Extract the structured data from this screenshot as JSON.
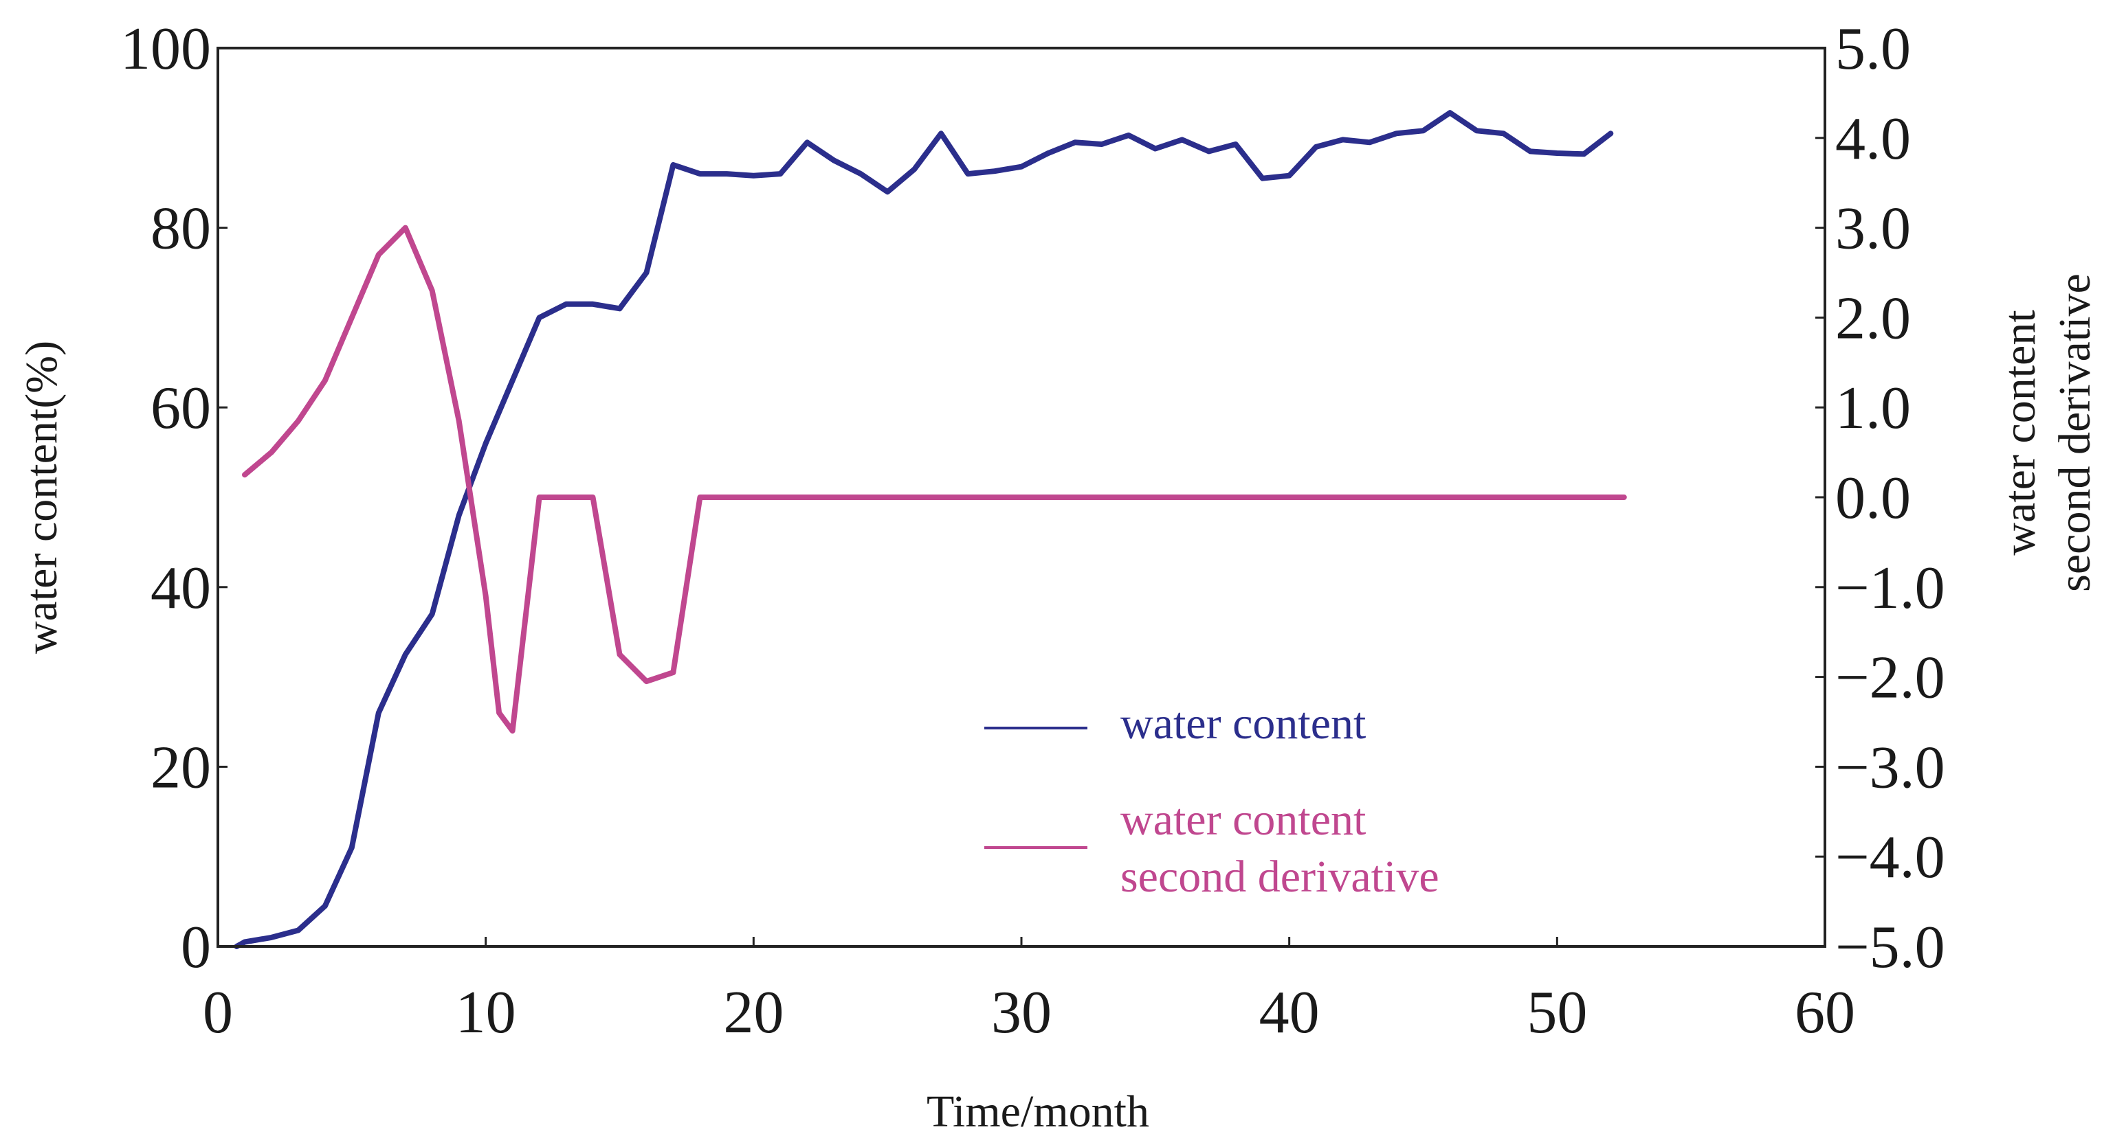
{
  "chart_data": {
    "type": "line",
    "title": "",
    "xlabel": "Time/month",
    "ylabel": "water content(%)",
    "y2label_line1": "water content",
    "y2label_line2": "second derivative",
    "xlim": [
      0,
      60
    ],
    "ylim": [
      0,
      100
    ],
    "y2lim": [
      -5,
      5
    ],
    "grid": false,
    "legend_position": "lower-right",
    "x_ticks": [
      0,
      10,
      20,
      30,
      40,
      50,
      60
    ],
    "x_tick_labels": [
      "0",
      "10",
      "20",
      "30",
      "40",
      "50",
      "60"
    ],
    "y_ticks": [
      0,
      20,
      40,
      60,
      80,
      100
    ],
    "y_tick_labels": [
      "0",
      "20",
      "40",
      "60",
      "80",
      "100"
    ],
    "y2_ticks": [
      -5,
      -4,
      -3,
      -2,
      -1,
      0,
      1,
      2,
      3,
      4,
      5
    ],
    "y2_tick_labels": [
      "−5.0",
      "−4.0",
      "−3.0",
      "−2.0",
      "−1.0",
      "0.0",
      "1.0",
      "2.0",
      "3.0",
      "4.0",
      "5.0"
    ],
    "series": [
      {
        "name": "water content",
        "legend_label": "water content",
        "axis": "left",
        "color": "#2b2e8c",
        "x": [
          0.7,
          1,
          2,
          3,
          4,
          5,
          6,
          7,
          8,
          9,
          10,
          11,
          12,
          13,
          14,
          15,
          16,
          17,
          18,
          19,
          20,
          21,
          22,
          23,
          24,
          25,
          26,
          27,
          28,
          29,
          30,
          31,
          32,
          33,
          34,
          35,
          36,
          37,
          38,
          39,
          40,
          41,
          42,
          43,
          44,
          45,
          46,
          47,
          48,
          49,
          50,
          51,
          52
        ],
        "y": [
          0,
          0.5,
          1,
          1.8,
          4.5,
          11,
          26,
          32.5,
          37,
          48,
          56,
          63,
          70,
          71.5,
          71.5,
          71,
          75,
          87,
          86,
          86,
          85.8,
          86,
          89.5,
          87.5,
          86,
          84,
          86.5,
          90.5,
          86,
          86.3,
          86.8,
          88.3,
          89.5,
          89.3,
          90.3,
          88.8,
          89.8,
          88.5,
          89.3,
          85.5,
          85.8,
          89,
          89.8,
          89.5,
          90.5,
          90.8,
          92.8,
          90.8,
          90.5,
          88.5,
          88.3,
          88.2,
          90.5
        ]
      },
      {
        "name": "water content second derivative",
        "legend_label_line1": "water content",
        "legend_label_line2": "second derivative",
        "axis": "right",
        "color": "#c0478f",
        "x": [
          1,
          2,
          3,
          4,
          5,
          6,
          7,
          8,
          9,
          10,
          10.5,
          11,
          12,
          13,
          14,
          15,
          16,
          17,
          18,
          19,
          20,
          30,
          40,
          50,
          52.5
        ],
        "y": [
          0.25,
          0.5,
          0.85,
          1.3,
          2.0,
          2.7,
          3.0,
          2.3,
          0.85,
          -1.1,
          -2.4,
          -2.6,
          0.0,
          0.0,
          0.0,
          -1.75,
          -2.05,
          -1.95,
          0.0,
          0.0,
          0.0,
          0.0,
          0.0,
          0.0,
          0.0
        ]
      }
    ]
  }
}
